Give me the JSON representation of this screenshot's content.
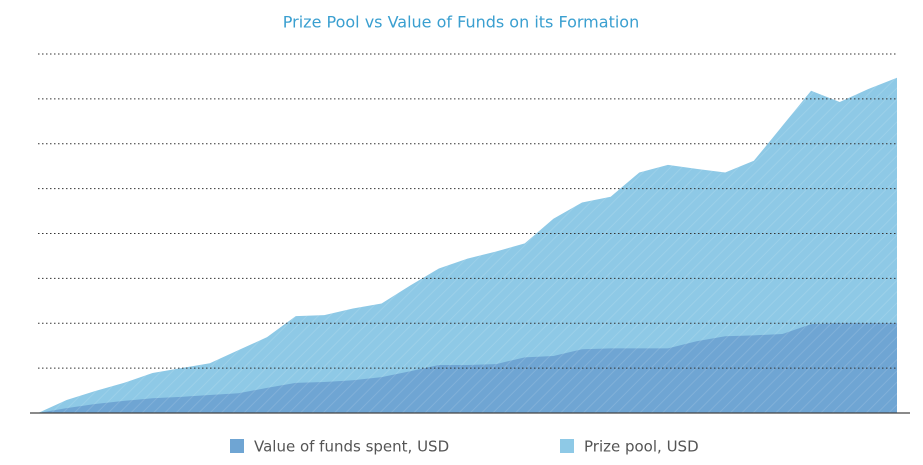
{
  "chart_data": {
    "type": "area",
    "title": "Prize Pool vs Value of Funds on its Formation",
    "categories": [
      null,
      null,
      null,
      null,
      null,
      null,
      null,
      null,
      null,
      null,
      null,
      null,
      null,
      null,
      null,
      null,
      null,
      null,
      null,
      null,
      null,
      null,
      null,
      null,
      null,
      null,
      null,
      null,
      null,
      null,
      null
    ],
    "series": [
      {
        "name": "Prize pool, USD",
        "color": "#8ec9e6",
        "values": [
          0,
          0.29,
          0.49,
          0.67,
          0.89,
          1.0,
          1.11,
          1.4,
          1.69,
          2.16,
          2.18,
          2.33,
          2.44,
          2.84,
          3.22,
          3.44,
          3.6,
          3.78,
          4.33,
          4.69,
          4.82,
          5.36,
          5.53,
          5.44,
          5.36,
          5.62,
          6.4,
          7.18,
          6.93,
          7.22,
          7.47
        ]
      },
      {
        "name": "Value of funds spent, USD",
        "color": "#6fa5d3",
        "values": [
          0,
          0.11,
          0.2,
          0.27,
          0.33,
          0.36,
          0.4,
          0.44,
          0.56,
          0.67,
          0.69,
          0.73,
          0.8,
          0.93,
          1.07,
          1.07,
          1.09,
          1.24,
          1.27,
          1.42,
          1.44,
          1.44,
          1.44,
          1.6,
          1.71,
          1.73,
          1.76,
          1.98,
          2.0,
          2.0,
          2.0
        ]
      }
    ],
    "legend_order": [
      1,
      0
    ],
    "ylim": [
      0,
      8
    ],
    "yticks": [
      1,
      2,
      3,
      4,
      5,
      6,
      7,
      8
    ],
    "grid": true
  }
}
